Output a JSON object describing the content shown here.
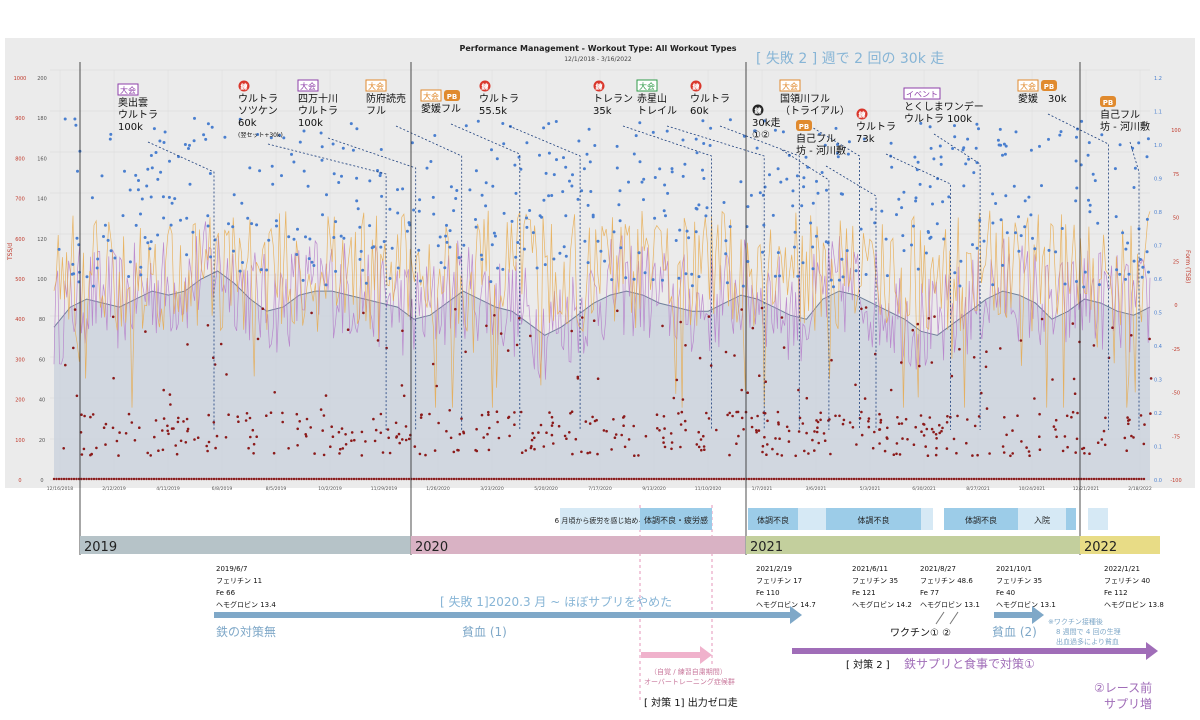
{
  "chart_data": {
    "type": "scatter",
    "title": "Performance Management - Workout Type: All Workout Types",
    "subtitle": "12/1/2018 - 3/16/2022",
    "ylabel_left": "TSS/d",
    "ylabel_right": "Form (TSB)",
    "y_left_ticks": [
      "1000",
      "900",
      "800",
      "700",
      "600",
      "500",
      "400",
      "300",
      "200",
      "100",
      "0"
    ],
    "y_left2_ticks": [
      "200",
      "180",
      "160",
      "140",
      "120",
      "100",
      "80",
      "60",
      "40",
      "20",
      "0"
    ],
    "y_right_ticks": [
      "1.2",
      "1.1",
      "1.0",
      "0.9",
      "0.8",
      "0.7",
      "0.6",
      "0.5",
      "0.4",
      "0.3",
      "0.2",
      "0.1",
      "0.0"
    ],
    "y_right2_ticks": [
      "100",
      "75",
      "50",
      "25",
      "0",
      "-25",
      "-50",
      "-75",
      "-100"
    ],
    "x_ticks": [
      "12/16/2018",
      "2/12/2019",
      "4/11/2019",
      "6/8/2019",
      "8/5/2019",
      "10/2/2019",
      "11/29/2019",
      "1/26/2020",
      "3/23/2020",
      "5/20/2020",
      "7/17/2020",
      "9/13/2020",
      "11/10/2020",
      "1/7/2021",
      "3/6/2021",
      "5/3/2021",
      "6/30/2021",
      "8/27/2021",
      "10/24/2021",
      "12/21/2021",
      "2/18/2022"
    ],
    "x_range": [
      "12/1/2018",
      "3/16/2022"
    ],
    "series": [
      {
        "name": "",
        "kind": "ctl_area",
        "color": "#8a9bb5",
        "values": [
          380,
          430,
          450,
          440,
          430,
          450,
          470,
          460,
          470,
          500,
          520,
          490,
          450,
          420,
          430,
          460,
          470,
          470,
          460,
          450,
          440,
          430,
          400,
          410,
          440,
          470,
          450,
          430,
          420,
          390,
          360,
          380,
          410,
          440,
          460,
          470,
          460,
          440,
          430,
          420,
          420,
          440,
          460,
          450,
          430,
          410,
          400,
          450,
          470,
          460,
          440,
          420,
          400,
          370,
          360,
          390,
          420,
          450,
          470,
          460,
          440,
          400,
          420,
          450,
          440,
          420,
          410,
          430
        ]
      },
      {
        "name": "",
        "kind": "atl_line",
        "color": "#b57ac9"
      },
      {
        "name": "",
        "kind": "tsb_line",
        "color": "#e8a94a"
      },
      {
        "name": "",
        "kind": "if_points",
        "color": "#4a7fcf"
      },
      {
        "name": "",
        "kind": "tss_points",
        "color": "#8b1a1a"
      }
    ],
    "grid": true
  },
  "banner": {
    "top_note": "[ 失敗 2 ] 週で 2 回の 30k 走"
  },
  "races": [
    {
      "badge": "大会",
      "badge2": "",
      "badge_color": "#8e3fa8",
      "lines": [
        "奥出雲",
        "ウルトラ",
        "100k"
      ],
      "date_frac": 0.146,
      "label_x": 118,
      "label_y": 92
    },
    {
      "badge": "練",
      "badge2": "",
      "badge_color": "#d9362b",
      "lines": [
        "ウルトラ",
        "ソツケン",
        "60k"
      ],
      "note": "(翌セット+30k)",
      "date_frac": 0.303,
      "label_x": 238,
      "label_y": 88
    },
    {
      "badge": "大会",
      "badge2": "",
      "badge_color": "#8e3fa8",
      "lines": [
        "四万十川",
        "ウルトラ",
        "100k"
      ],
      "date_frac": 0.33,
      "label_x": 298,
      "label_y": 88
    },
    {
      "badge": "大会",
      "badge2": "",
      "badge_color": "#e08a2e",
      "lines": [
        "防府読売",
        "フル"
      ],
      "date_frac": 0.372,
      "label_x": 366,
      "label_y": 88
    },
    {
      "badge": "大会",
      "badge2": "PB",
      "badge_color": "#e08a2e",
      "lines": [
        "愛媛フル"
      ],
      "date_frac": 0.425,
      "label_x": 421,
      "label_y": 98
    },
    {
      "badge": "練",
      "badge2": "",
      "badge_color": "#d9362b",
      "lines": [
        "ウルトラ",
        "55.5k"
      ],
      "date_frac": 0.48,
      "label_x": 479,
      "label_y": 88
    },
    {
      "badge": "練",
      "badge2": "",
      "badge_color": "#d9362b",
      "lines": [
        "トレラン",
        "35k"
      ],
      "date_frac": 0.6,
      "label_x": 593,
      "label_y": 88
    },
    {
      "badge": "大会",
      "badge2": "",
      "badge_color": "#2f9b4a",
      "lines": [
        "赤星山",
        "トレイル"
      ],
      "date_frac": 0.648,
      "label_x": 637,
      "label_y": 88
    },
    {
      "badge": "練",
      "badge2": "",
      "badge_color": "#d9362b",
      "lines": [
        "ウルトラ",
        "60k"
      ],
      "date_frac": 0.68,
      "label_x": 690,
      "label_y": 88
    },
    {
      "badge": "練",
      "badge2": "",
      "badge_color": "#222222",
      "lines": [
        "30k走",
        "①②"
      ],
      "date_frac": 0.707,
      "label_x": 752,
      "label_y": 112
    },
    {
      "badge": "大会",
      "badge2": "",
      "badge_color": "#e08a2e",
      "lines": [
        "国領川フル",
        "（トライアル）"
      ],
      "date_frac": 0.735,
      "label_x": 780,
      "label_y": 88
    },
    {
      "badge": "",
      "badge2": "PB",
      "badge_color": "#e08a2e",
      "lines": [
        "自己フル",
        "坊 - 河川敷"
      ],
      "date_frac": 0.75,
      "label_x": 796,
      "label_y": 128
    },
    {
      "badge": "練",
      "badge2": "",
      "badge_color": "#d9362b",
      "lines": [
        "ウルトラ",
        "73k"
      ],
      "date_frac": 0.818,
      "label_x": 856,
      "label_y": 116
    },
    {
      "badge": "イベント",
      "badge2": "",
      "badge_color": "#8e3fa8",
      "lines": [
        "とくしまワンデー",
        "ウルトラ 100k"
      ],
      "date_frac": 0.845,
      "label_x": 904,
      "label_y": 96
    },
    {
      "badge": "大会",
      "badge2": "PB",
      "badge_color": "#e08a2e",
      "lines": [
        "愛媛　30k"
      ],
      "date_frac": 0.962,
      "label_x": 1018,
      "label_y": 88
    },
    {
      "badge": "",
      "badge2": "PB",
      "badge_color": "#e08a2e",
      "lines": [
        "自己フル",
        "坊 - 河川敷"
      ],
      "date_frac": 0.99,
      "label_x": 1100,
      "label_y": 104
    }
  ],
  "condition_bars": [
    {
      "text": "6 月頃から疲労を感じ始める",
      "x": 560,
      "w": 80,
      "dark": false
    },
    {
      "text": "体調不良・疲労感",
      "x": 640,
      "w": 72,
      "dark": true
    },
    {
      "text": "体調不良",
      "x": 748,
      "w": 50,
      "dark": true
    },
    {
      "text": "",
      "x": 798,
      "w": 28,
      "dark": false
    },
    {
      "text": "体調不良",
      "x": 826,
      "w": 95,
      "dark": true
    },
    {
      "text": "",
      "x": 921,
      "w": 12,
      "dark": false
    },
    {
      "text": "体調不良",
      "x": 944,
      "w": 74,
      "dark": true
    },
    {
      "text": "入院",
      "x": 1018,
      "w": 48,
      "dark": false
    },
    {
      "text": "",
      "x": 1066,
      "w": 10,
      "dark": true
    },
    {
      "text": "",
      "x": 1088,
      "w": 20,
      "dark": false
    }
  ],
  "years": [
    {
      "label": "2019",
      "x": 80,
      "w": 330,
      "color": "#b6c3c8"
    },
    {
      "label": "2020",
      "x": 411,
      "w": 334,
      "color": "#d9b2c4"
    },
    {
      "label": "2021",
      "x": 746,
      "w": 334,
      "color": "#c3cf9d"
    },
    {
      "label": "2022",
      "x": 1080,
      "w": 80,
      "color": "#e8dc86"
    }
  ],
  "blood_tests": [
    {
      "lines": [
        "2019/6/7",
        "フェリチン 11",
        "Fe 66",
        "ヘモグロビン 13.4"
      ],
      "x": 216
    },
    {
      "lines": [
        "2021/2/19",
        "フェリチン 17",
        "Fe 110",
        "ヘモグロビン 14.7"
      ],
      "x": 756
    },
    {
      "lines": [
        "2021/6/11",
        "フェリチン 35",
        "Fe 121",
        "ヘモグロビン 14.2"
      ],
      "x": 852
    },
    {
      "lines": [
        "2021/8/27",
        "フェリチン 48.6",
        "Fe 77",
        "ヘモグロビン 13.1"
      ],
      "x": 920
    },
    {
      "lines": [
        "2021/10/1",
        "フェリチン 35",
        "Fe 40",
        "ヘモグロビン 13.1"
      ],
      "x": 996
    },
    {
      "lines": [
        "2022/1/21",
        "フェリチン 40",
        "Fe 112",
        "ヘモグロビン 13.8"
      ],
      "x": 1104
    }
  ],
  "bottom": {
    "failure1": "[ 失敗 1]2020.3 月 ~ ほぼサプリをやめた",
    "no_iron": "鉄の対策無",
    "anemia1": "貧血 (1)",
    "vaccine": "ワクチン① ②",
    "anemia2": "貧血 (2)",
    "vaccine_note": [
      "※ワクチン接種後",
      "8 週間で 4 回の生理",
      "出血過多により貧血"
    ],
    "overtraining": [
      "（自覚 / 練習自粛期間）",
      "オーバートレーニング症候群"
    ],
    "measure1": "[ 対策 1] 出力ゼロ走",
    "measure2_prefix": "[ 対策 2 ]",
    "measure2": "鉄サプリと食事で対策①",
    "race_pre": [
      "②レース前",
      "サプリ増"
    ]
  }
}
